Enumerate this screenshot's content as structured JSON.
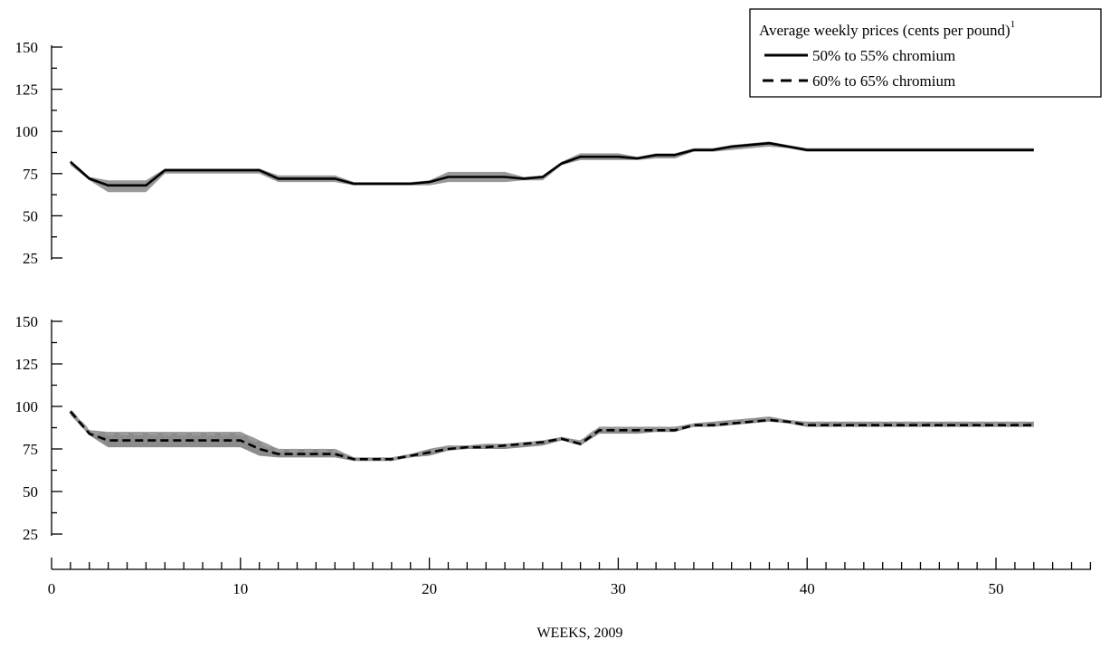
{
  "chart_data": {
    "type": "line",
    "xlabel": "WEEKS, 2009",
    "xlim": [
      0,
      55
    ],
    "x_ticks": [
      0,
      10,
      20,
      30,
      40,
      50
    ],
    "legend": {
      "title": "Average weekly prices (cents per pound)",
      "title_superscript": "1",
      "placement": "top-right"
    },
    "colors": {
      "line": "#000000",
      "band": "#999999",
      "dashed_band": "#8c8c8c"
    },
    "panels": [
      {
        "ylim": [
          25,
          150
        ],
        "y_ticks": [
          25,
          50,
          75,
          100,
          125,
          150
        ],
        "series": [
          {
            "name": "50% to 55% chromium",
            "style": "solid",
            "x": [
              1,
              2,
              3,
              4,
              5,
              6,
              7,
              8,
              9,
              10,
              11,
              12,
              13,
              14,
              15,
              16,
              17,
              18,
              19,
              20,
              21,
              22,
              23,
              24,
              25,
              26,
              27,
              28,
              29,
              30,
              31,
              32,
              33,
              34,
              35,
              36,
              37,
              38,
              39,
              40,
              41,
              42,
              43,
              44,
              45,
              46,
              47,
              48,
              49,
              50,
              51,
              52
            ],
            "y": [
              82,
              72,
              68,
              68,
              68,
              77,
              77,
              77,
              77,
              77,
              77,
              72,
              72,
              72,
              72,
              69,
              69,
              69,
              69,
              70,
              73,
              73,
              73,
              73,
              72,
              73,
              81,
              85,
              85,
              85,
              84,
              86,
              86,
              89,
              89,
              91,
              92,
              93,
              91,
              89,
              89,
              89,
              89,
              89,
              89,
              89,
              89,
              89,
              89,
              89,
              89,
              89
            ],
            "low": [
              80,
              71,
              64,
              64,
              64,
              75,
              75,
              75,
              75,
              75,
              75,
              70,
              70,
              70,
              70,
              68,
              68,
              68,
              68,
              68,
              70,
              70,
              70,
              70,
              71,
              71,
              80,
              83,
              83,
              83,
              83,
              84,
              84,
              88,
              88,
              89,
              90,
              91,
              90,
              88,
              88,
              88,
              88,
              88,
              88,
              88,
              88,
              88,
              88,
              88,
              88,
              88
            ],
            "high": [
              83,
              73,
              71,
              71,
              71,
              78,
              78,
              78,
              78,
              78,
              78,
              74,
              74,
              74,
              74,
              70,
              70,
              70,
              70,
              71,
              76,
              76,
              76,
              76,
              73,
              74,
              82,
              87,
              87,
              87,
              85,
              87,
              87,
              90,
              90,
              92,
              93,
              94,
              92,
              90,
              90,
              90,
              90,
              90,
              90,
              90,
              90,
              90,
              90,
              90,
              90,
              90
            ]
          }
        ]
      },
      {
        "ylim": [
          25,
          150
        ],
        "y_ticks": [
          25,
          50,
          75,
          100,
          125,
          150
        ],
        "series": [
          {
            "name": "60% to 65% chromium",
            "style": "dashed",
            "x": [
              1,
              2,
              3,
              4,
              5,
              6,
              7,
              8,
              9,
              10,
              11,
              12,
              13,
              14,
              15,
              16,
              17,
              18,
              19,
              20,
              21,
              22,
              23,
              24,
              25,
              26,
              27,
              28,
              29,
              30,
              31,
              32,
              33,
              34,
              35,
              36,
              37,
              38,
              39,
              40,
              41,
              42,
              43,
              44,
              45,
              46,
              47,
              48,
              49,
              50,
              51,
              52
            ],
            "y": [
              97,
              84,
              80,
              80,
              80,
              80,
              80,
              80,
              80,
              80,
              75,
              72,
              72,
              72,
              72,
              69,
              69,
              69,
              71,
              73,
              75,
              76,
              76,
              77,
              78,
              79,
              81,
              78,
              86,
              86,
              86,
              86,
              86,
              89,
              89,
              90,
              91,
              92,
              91,
              89,
              89,
              89,
              89,
              89,
              89,
              89,
              89,
              89,
              89,
              89,
              89,
              89
            ],
            "low": [
              95,
              83,
              76,
              76,
              76,
              76,
              76,
              76,
              76,
              76,
              71,
              70,
              70,
              70,
              70,
              68,
              68,
              68,
              70,
              71,
              74,
              75,
              75,
              75,
              76,
              77,
              80,
              77,
              84,
              84,
              84,
              85,
              85,
              88,
              88,
              89,
              90,
              91,
              90,
              88,
              88,
              88,
              88,
              88,
              88,
              88,
              88,
              88,
              88,
              88,
              88,
              88
            ],
            "high": [
              98,
              86,
              85,
              85,
              85,
              85,
              85,
              85,
              85,
              85,
              80,
              75,
              75,
              75,
              75,
              70,
              70,
              70,
              72,
              75,
              77,
              77,
              78,
              78,
              79,
              80,
              82,
              80,
              88,
              88,
              88,
              88,
              88,
              90,
              91,
              92,
              93,
              94,
              92,
              91,
              91,
              91,
              91,
              91,
              91,
              91,
              91,
              91,
              91,
              91,
              91,
              91
            ]
          }
        ]
      }
    ]
  }
}
